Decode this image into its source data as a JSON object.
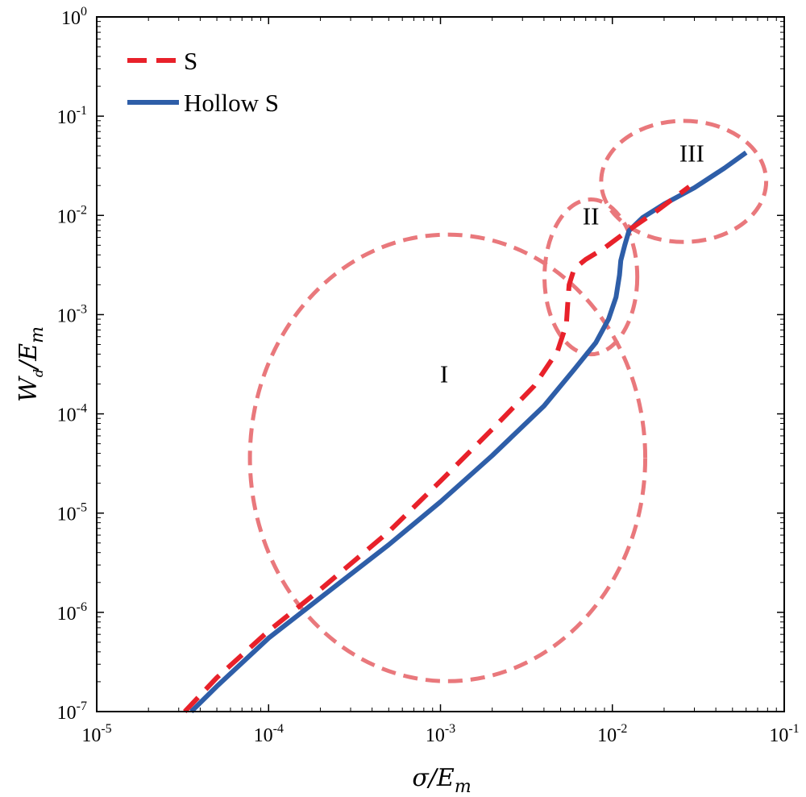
{
  "chart_data": {
    "type": "line",
    "title": "",
    "xscale": "log",
    "yscale": "log",
    "xlim": [
      1e-05,
      0.1
    ],
    "ylim": [
      1e-07,
      1
    ],
    "xlabel_main": "σ/E",
    "xlabel_sub": "m",
    "ylabel_main": "W",
    "ylabel_sub": "d",
    "ylabel_mid": "/E",
    "ylabel_sub2": "m",
    "x_ticks": [
      {
        "base": "10",
        "exp": "-5",
        "value": 1e-05
      },
      {
        "base": "10",
        "exp": "-4",
        "value": 0.0001
      },
      {
        "base": "10",
        "exp": "-3",
        "value": 0.001
      },
      {
        "base": "10",
        "exp": "-2",
        "value": 0.01
      },
      {
        "base": "10",
        "exp": "-1",
        "value": 0.1
      }
    ],
    "y_ticks": [
      {
        "base": "10",
        "exp": "-7",
        "value": 1e-07
      },
      {
        "base": "10",
        "exp": "-6",
        "value": 1e-06
      },
      {
        "base": "10",
        "exp": "-5",
        "value": 1e-05
      },
      {
        "base": "10",
        "exp": "-4",
        "value": 0.0001
      },
      {
        "base": "10",
        "exp": "-3",
        "value": 0.001
      },
      {
        "base": "10",
        "exp": "-2",
        "value": 0.01
      },
      {
        "base": "10",
        "exp": "-1",
        "value": 0.1
      },
      {
        "base": "10",
        "exp": "0",
        "value": 1
      }
    ],
    "legend_position": "top-left",
    "series": [
      {
        "name": "S",
        "color": "#e8212a",
        "style": "dashed",
        "points": [
          [
            3.25e-05,
            1e-07
          ],
          [
            5e-05,
            2.2e-07
          ],
          [
            0.0001,
            6.5e-07
          ],
          [
            0.0002,
            1.7e-06
          ],
          [
            0.0005,
            6.5e-06
          ],
          [
            0.001,
            2.1e-05
          ],
          [
            0.002,
            7e-05
          ],
          [
            0.0035,
            0.00019
          ],
          [
            0.0048,
            0.00043
          ],
          [
            0.0054,
            0.0008
          ],
          [
            0.0055,
            0.0013
          ],
          [
            0.0056,
            0.002
          ],
          [
            0.006,
            0.0029
          ],
          [
            0.007,
            0.0036
          ],
          [
            0.009,
            0.0047
          ],
          [
            0.012,
            0.0068
          ],
          [
            0.018,
            0.011
          ],
          [
            0.028,
            0.0195
          ]
        ]
      },
      {
        "name": "Hollow S",
        "color": "#2e5ea8",
        "style": "solid",
        "points": [
          [
            3.55e-05,
            1e-07
          ],
          [
            5e-05,
            1.8e-07
          ],
          [
            0.0001,
            5.5e-07
          ],
          [
            0.0002,
            1.4e-06
          ],
          [
            0.0005,
            4.8e-06
          ],
          [
            0.001,
            1.3e-05
          ],
          [
            0.002,
            3.8e-05
          ],
          [
            0.004,
            0.00012
          ],
          [
            0.006,
            0.00028
          ],
          [
            0.008,
            0.00052
          ],
          [
            0.0095,
            0.0009
          ],
          [
            0.0105,
            0.0015
          ],
          [
            0.011,
            0.0025
          ],
          [
            0.0112,
            0.0035
          ],
          [
            0.0118,
            0.005
          ],
          [
            0.0125,
            0.007
          ],
          [
            0.015,
            0.0095
          ],
          [
            0.02,
            0.013
          ],
          [
            0.03,
            0.019
          ],
          [
            0.045,
            0.03
          ],
          [
            0.06,
            0.043
          ]
        ]
      }
    ],
    "regions": [
      {
        "label": "I",
        "center": [
          0.0011,
          3.6e-05
        ],
        "rx_decades": 1.15,
        "ry_decades": 2.25,
        "label_at": [
          0.00105,
          0.00025
        ]
      },
      {
        "label": "II",
        "center": [
          0.0075,
          0.0024
        ],
        "rx_decades": 0.27,
        "ry_decades": 0.78,
        "label_at": [
          0.0075,
          0.0098
        ]
      },
      {
        "label": "III",
        "center": [
          0.026,
          0.022
        ],
        "rx_decades": 0.48,
        "ry_decades": 0.61,
        "label_at": [
          0.029,
          0.042
        ]
      }
    ],
    "region_color": "#e9787c"
  }
}
